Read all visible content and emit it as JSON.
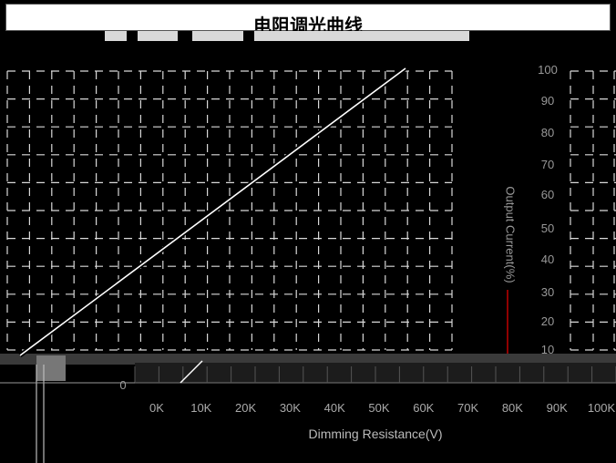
{
  "chart_data": {
    "type": "line",
    "title": "电阻调光曲线",
    "xlabel": "Dimming Resistance(V)",
    "ylabel": "Output Current(%)",
    "x_tick_labels": [
      "0K",
      "10K",
      "20K",
      "30K",
      "40K",
      "50K",
      "60K",
      "70K",
      "80K",
      "90K",
      "100K"
    ],
    "y_tick_labels": [
      "0",
      "10",
      "20",
      "30",
      "40",
      "50",
      "60",
      "70",
      "80",
      "90",
      "100"
    ],
    "xlim": [
      0,
      100
    ],
    "ylim": [
      0,
      100
    ],
    "grid": true,
    "series": [
      {
        "x": [
          0,
          100
        ],
        "y": [
          0,
          100
        ],
        "color": "#ffffff"
      }
    ]
  }
}
